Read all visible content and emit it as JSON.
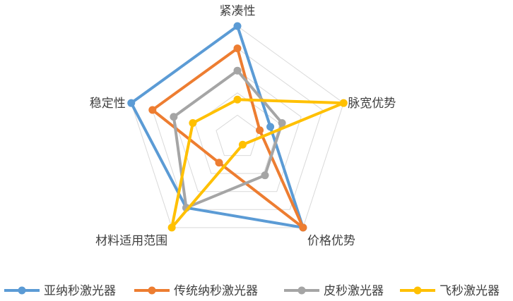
{
  "chart_data": {
    "type": "radar",
    "title": "",
    "axes": [
      "紧凑性",
      "脉宽优势",
      "价格优势",
      "材料适用范围",
      "稳定性"
    ],
    "scale": {
      "min": 0,
      "max": 10,
      "rings": 5
    },
    "grid": true,
    "legend": {
      "position": "bottom"
    },
    "series": [
      {
        "name": "亚纳秒激光器",
        "color": "#5B9BD5",
        "values": [
          10,
          3.1,
          10,
          7.8,
          10
        ]
      },
      {
        "name": "传统纳秒激光器",
        "color": "#ED7D31",
        "values": [
          8,
          2.1,
          10,
          2.8,
          8
        ]
      },
      {
        "name": "皮秒激光器",
        "color": "#A5A5A5",
        "values": [
          6,
          4.2,
          4.2,
          7.8,
          6
        ]
      },
      {
        "name": "飞秒激光器",
        "color": "#FFC000",
        "values": [
          3.4,
          10,
          0.8,
          10,
          4.2
        ]
      }
    ]
  }
}
